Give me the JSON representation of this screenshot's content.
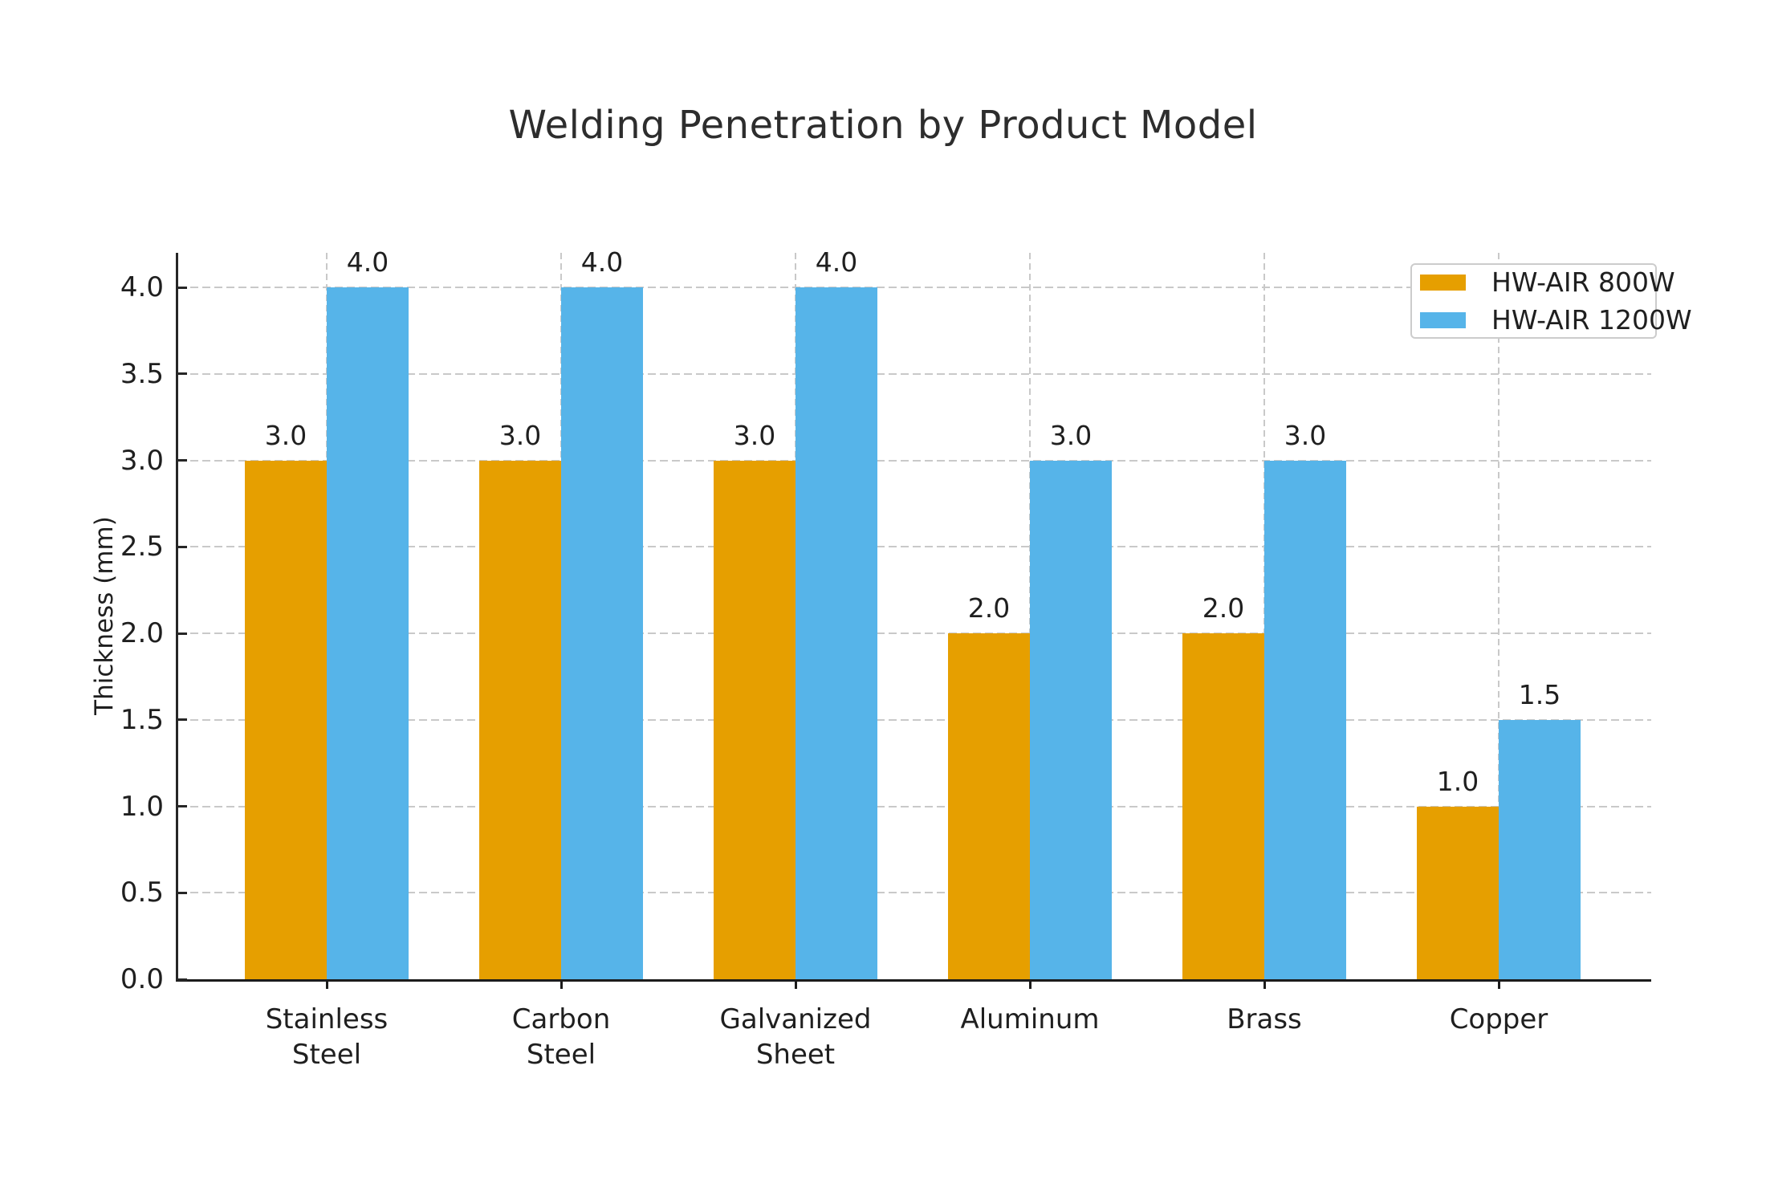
{
  "chart_data": {
    "type": "bar",
    "title": "Welding Penetration by Product Model",
    "categories": [
      "Stainless\nSteel",
      "Carbon\nSteel",
      "Galvanized\nSheet",
      "Aluminum",
      "Brass",
      "Copper"
    ],
    "series": [
      {
        "name": "HW-AIR 800W",
        "color": "#E69F00",
        "values": [
          3.0,
          3.0,
          3.0,
          2.0,
          2.0,
          1.0
        ]
      },
      {
        "name": "HW-AIR 1200W",
        "color": "#56B4E9",
        "values": [
          4.0,
          4.0,
          4.0,
          3.0,
          3.0,
          1.5
        ]
      }
    ],
    "xlabel": "",
    "ylabel": "Thickness (mm)",
    "ylim": [
      0,
      4.2
    ],
    "yticks": [
      0.0,
      0.5,
      1.0,
      1.5,
      2.0,
      2.5,
      3.0,
      3.5,
      4.0
    ],
    "bar_value_labels": true,
    "value_label_format": "one-decimal",
    "grid": "dashed-both-axes",
    "legend_position": "upper-right",
    "colors": {
      "grid": "#c9c9c9",
      "spine": "#262626",
      "text": "#1f1f1f",
      "title": "#2d2d2d",
      "background": "#ffffff"
    }
  }
}
